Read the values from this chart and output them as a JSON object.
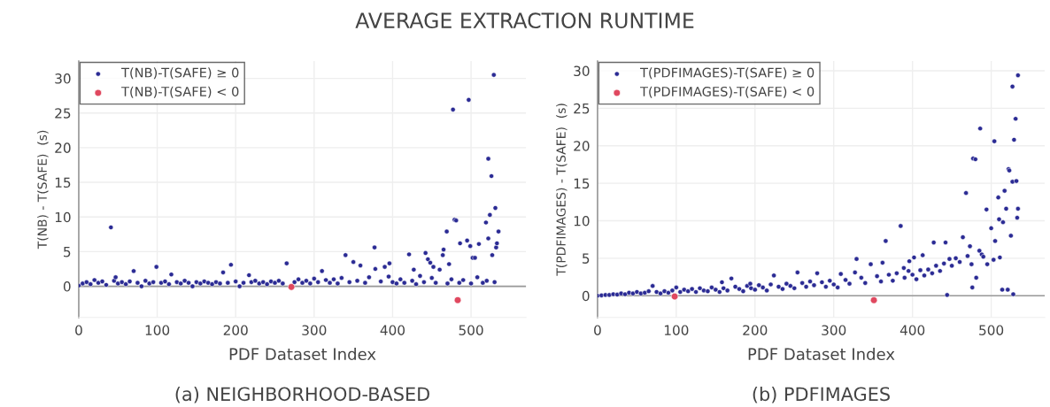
{
  "chart_data": [
    {
      "type": "scatter",
      "title": "(a) NEIGHBORHOOD-BASED",
      "xlabel": "PDF Dataset Index",
      "ylabel": "T(NB) - T(SAFE)  (s)",
      "annotations": [
        "AVERAGE EXTRACTION RUNTIME"
      ],
      "xlim": [
        0,
        570
      ],
      "ylim": [
        -4.5,
        32.5
      ],
      "xticks": [
        0,
        100,
        200,
        300,
        400,
        500
      ],
      "yticks": [
        0,
        5,
        10,
        15,
        20,
        25,
        30
      ],
      "grid": true,
      "legend": "top left",
      "marker": "circle",
      "ref_lines": [
        {
          "axis": "y",
          "value": 0,
          "color": "#999999"
        }
      ],
      "series": [
        {
          "name": "T(NB)-T(SAFE) ≥ 0",
          "color": "#2b2b94",
          "x": [
            0,
            5,
            10,
            15,
            20,
            25,
            30,
            35,
            41,
            45,
            47,
            50,
            55,
            60,
            65,
            70,
            75,
            80,
            85,
            90,
            95,
            99,
            105,
            110,
            115,
            118,
            125,
            130,
            135,
            140,
            145,
            150,
            155,
            160,
            165,
            170,
            175,
            180,
            184,
            190,
            194,
            200,
            205,
            210,
            217,
            220,
            225,
            230,
            235,
            240,
            245,
            250,
            255,
            260,
            265,
            275,
            280,
            285,
            290,
            295,
            300,
            305,
            310,
            315,
            320,
            325,
            330,
            335,
            340,
            345,
            350,
            355,
            359,
            365,
            370,
            377,
            378,
            385,
            390,
            395,
            396,
            400,
            405,
            410,
            415,
            421,
            425,
            427,
            430,
            435,
            440,
            442,
            445,
            448,
            450,
            452,
            455,
            460,
            464,
            465,
            469,
            470,
            472,
            475,
            477,
            479,
            481,
            485,
            486,
            490,
            495,
            497,
            499,
            500,
            502,
            505,
            508,
            510,
            515,
            519,
            520,
            522,
            522,
            524,
            526,
            527,
            529,
            530,
            531,
            532,
            533,
            535
          ],
          "values": [
            0.1,
            0.4,
            0.6,
            0.3,
            0.9,
            0.5,
            0.7,
            0.2,
            8.5,
            0.8,
            1.3,
            0.4,
            0.6,
            0.3,
            0.7,
            2.2,
            0.5,
            0.0,
            0.8,
            0.4,
            0.6,
            2.8,
            0.5,
            0.7,
            0.3,
            1.7,
            0.6,
            0.4,
            0.8,
            0.5,
            0.0,
            0.6,
            0.4,
            0.7,
            0.5,
            0.3,
            0.6,
            0.4,
            2.0,
            0.5,
            3.1,
            0.7,
            0.0,
            0.5,
            1.6,
            0.6,
            0.8,
            0.4,
            0.6,
            0.3,
            0.7,
            0.5,
            0.8,
            0.4,
            3.3,
            0.6,
            1.0,
            0.5,
            0.8,
            0.4,
            1.1,
            0.6,
            2.2,
            0.9,
            0.5,
            1.0,
            0.4,
            1.2,
            4.5,
            0.6,
            3.5,
            0.8,
            3.0,
            0.5,
            1.3,
            5.6,
            2.5,
            0.7,
            2.8,
            1.4,
            3.3,
            0.6,
            0.4,
            1.0,
            0.5,
            4.6,
            0.8,
            2.4,
            0.3,
            1.5,
            0.6,
            4.8,
            3.9,
            3.4,
            1.2,
            2.8,
            0.5,
            2.4,
            4.5,
            5.3,
            7.9,
            0.4,
            3.2,
            1.0,
            25.5,
            9.6,
            9.5,
            0.5,
            6.2,
            0.9,
            6.6,
            26.9,
            5.8,
            0.4,
            4.1,
            4.1,
            1.3,
            6.1,
            0.5,
            9.2,
            0.8,
            18.4,
            6.9,
            10.3,
            15.9,
            4.5,
            30.5,
            0.6,
            11.3,
            5.6,
            6.2,
            7.9
          ]
        },
        {
          "name": "T(NB)-T(SAFE) < 0",
          "color": "#e0485f",
          "x": [
            271,
            483
          ],
          "values": [
            -0.1,
            -2.0
          ]
        }
      ]
    },
    {
      "type": "scatter",
      "title": "(b) PDFIMAGES",
      "xlabel": "PDF Dataset Index",
      "ylabel": "T(PDFIMAGES) - T(SAFE)  (s)",
      "xlim": [
        0,
        568
      ],
      "ylim": [
        -2.9,
        31.3
      ],
      "xticks": [
        0,
        100,
        200,
        300,
        400,
        500
      ],
      "yticks": [
        0,
        5,
        10,
        15,
        20,
        25,
        30
      ],
      "grid": true,
      "legend": "top left",
      "marker": "circle",
      "ref_lines": [
        {
          "axis": "y",
          "value": 0,
          "color": "#999999"
        }
      ],
      "series": [
        {
          "name": "T(PDFIMAGES)-T(SAFE) ≥ 0",
          "color": "#2b2b94",
          "x": [
            0,
            5,
            10,
            15,
            20,
            25,
            30,
            35,
            40,
            45,
            50,
            55,
            60,
            65,
            70,
            75,
            80,
            85,
            90,
            95,
            100,
            105,
            110,
            115,
            120,
            125,
            130,
            135,
            140,
            145,
            150,
            155,
            158,
            160,
            165,
            170,
            175,
            180,
            185,
            190,
            194,
            195,
            200,
            205,
            210,
            215,
            220,
            224,
            230,
            235,
            240,
            245,
            250,
            254,
            260,
            265,
            270,
            275,
            279,
            285,
            290,
            295,
            300,
            305,
            309,
            315,
            320,
            327,
            329,
            335,
            340,
            347,
            355,
            360,
            362,
            366,
            370,
            375,
            380,
            385,
            389,
            390,
            395,
            396,
            400,
            402,
            405,
            410,
            413,
            415,
            420,
            425,
            427,
            430,
            435,
            440,
            442,
            444,
            447,
            450,
            455,
            460,
            464,
            468,
            470,
            473,
            475,
            476,
            477,
            480,
            481,
            485,
            486,
            488,
            490,
            494,
            495,
            500,
            503,
            504,
            505,
            509,
            510,
            511,
            514,
            515,
            517,
            519,
            521,
            522,
            523,
            525,
            527,
            527,
            528,
            529,
            531,
            532,
            533,
            534,
            534
          ],
          "values": [
            0.0,
            0.05,
            0.1,
            0.1,
            0.2,
            0.15,
            0.3,
            0.2,
            0.4,
            0.3,
            0.5,
            0.3,
            0.4,
            0.6,
            1.3,
            0.5,
            0.3,
            0.6,
            0.4,
            0.7,
            1.1,
            0.5,
            0.8,
            0.6,
            0.9,
            0.5,
            1.0,
            0.7,
            0.6,
            1.1,
            0.8,
            0.5,
            1.8,
            1.0,
            0.7,
            2.3,
            1.2,
            0.9,
            0.6,
            1.3,
            1.6,
            1.0,
            0.8,
            1.4,
            1.1,
            0.7,
            1.5,
            2.7,
            1.2,
            0.9,
            1.6,
            1.3,
            1.0,
            3.1,
            1.7,
            1.2,
            1.9,
            1.4,
            3.0,
            1.8,
            1.2,
            2.0,
            1.5,
            1.1,
            2.9,
            2.1,
            1.6,
            3.1,
            4.9,
            2.4,
            1.7,
            4.2,
            2.6,
            1.9,
            4.4,
            7.3,
            2.8,
            2.0,
            3.0,
            9.3,
            3.7,
            2.4,
            3.3,
            4.6,
            2.8,
            5.1,
            2.2,
            3.4,
            5.4,
            2.7,
            3.5,
            3.0,
            7.1,
            4.0,
            3.3,
            4.3,
            7.1,
            0.1,
            4.9,
            4.0,
            5.0,
            4.5,
            7.8,
            13.7,
            5.3,
            6.6,
            4.2,
            1.1,
            18.3,
            18.2,
            2.4,
            6.0,
            22.3,
            5.5,
            5.2,
            11.5,
            4.2,
            9.0,
            4.8,
            20.6,
            7.3,
            13.1,
            10.2,
            5.1,
            0.8,
            9.8,
            14.0,
            11.6,
            0.8,
            16.9,
            16.7,
            8.0,
            15.2,
            27.9,
            0.2,
            20.8,
            23.6,
            15.3,
            10.4,
            29.4,
            11.6
          ]
        },
        {
          "name": "T(PDFIMAGES)-T(SAFE) < 0",
          "color": "#e0485f",
          "x": [
            98,
            351
          ],
          "values": [
            -0.1,
            -0.6
          ]
        }
      ]
    }
  ]
}
